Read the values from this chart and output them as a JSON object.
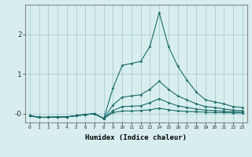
{
  "xlabel": "Humidex (Indice chaleur)",
  "ylabel": "",
  "xlim": [
    -0.5,
    23.5
  ],
  "ylim": [
    -0.22,
    2.75
  ],
  "bg_color": "#d8eeee",
  "grid_color": "#aacccc",
  "line_color": "#1a6b6b",
  "lines": [
    [
      -0.05,
      -0.09,
      -0.09,
      -0.08,
      -0.08,
      -0.05,
      -0.02,
      0.0,
      -0.12,
      0.65,
      1.22,
      1.27,
      1.32,
      1.7,
      2.55,
      1.7,
      1.2,
      0.85,
      0.55,
      0.35,
      0.3,
      0.25,
      0.18,
      0.16
    ],
    [
      -0.05,
      -0.09,
      -0.09,
      -0.08,
      -0.08,
      -0.05,
      -0.02,
      0.0,
      -0.12,
      0.22,
      0.42,
      0.45,
      0.48,
      0.62,
      0.82,
      0.62,
      0.45,
      0.35,
      0.25,
      0.18,
      0.16,
      0.12,
      0.09,
      0.08
    ],
    [
      -0.05,
      -0.09,
      -0.09,
      -0.08,
      -0.08,
      -0.05,
      -0.02,
      0.0,
      -0.12,
      0.08,
      0.18,
      0.19,
      0.2,
      0.28,
      0.38,
      0.28,
      0.2,
      0.16,
      0.12,
      0.09,
      0.08,
      0.06,
      0.05,
      0.04
    ],
    [
      -0.05,
      -0.09,
      -0.09,
      -0.08,
      -0.08,
      -0.05,
      -0.02,
      0.0,
      -0.12,
      0.03,
      0.07,
      0.07,
      0.08,
      0.1,
      0.14,
      0.1,
      0.07,
      0.06,
      0.05,
      0.04,
      0.03,
      0.03,
      0.02,
      0.02
    ]
  ],
  "xticks": [
    0,
    1,
    2,
    3,
    4,
    5,
    6,
    7,
    8,
    9,
    10,
    11,
    12,
    13,
    14,
    15,
    16,
    17,
    18,
    19,
    20,
    21,
    22,
    23
  ],
  "yticks": [
    0,
    1,
    2
  ],
  "ytick_labels": [
    "-0",
    "1",
    "2"
  ]
}
